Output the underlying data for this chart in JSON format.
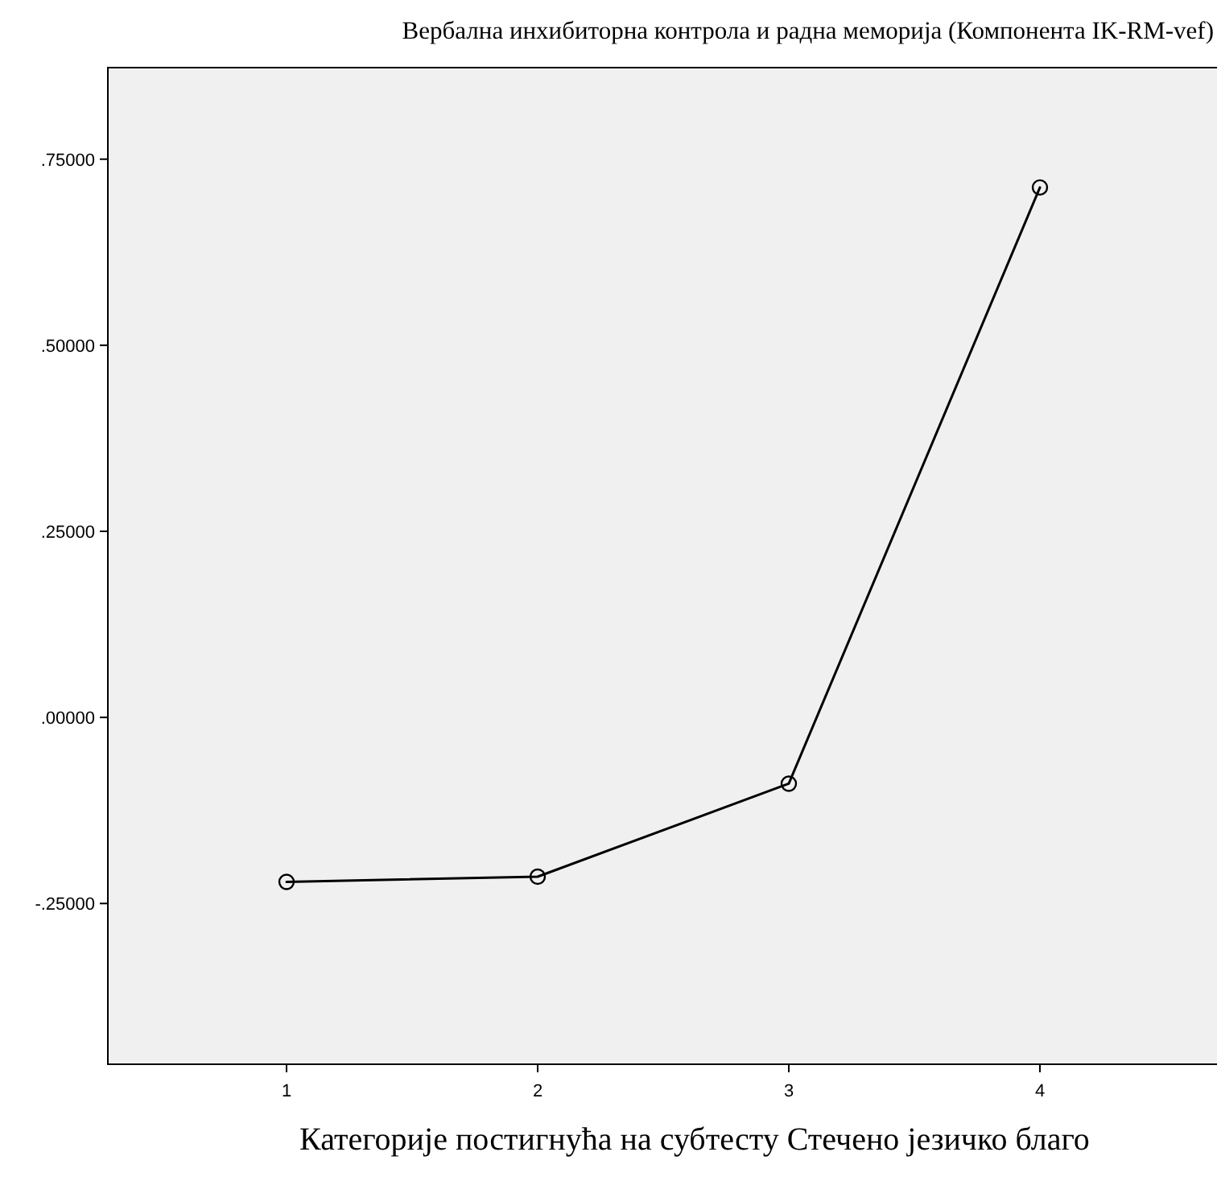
{
  "chart_data": {
    "type": "line",
    "title": "Вербална инхибиторна контрола и радна меморија (Компонента IK-RM-vef)",
    "xlabel": "Категорије постигнућа на субтесту Стечено језичко благо",
    "categories": [
      "1",
      "2",
      "3",
      "4"
    ],
    "series": [
      {
        "color": "#000000",
        "values": [
          -0.221,
          -0.214,
          -0.089,
          0.712
        ]
      }
    ],
    "ylim": [
      -0.466,
      0.873
    ],
    "yticks": [
      {
        "value": -0.25,
        "label": "-.25000"
      },
      {
        "value": 0,
        "label": ".00000"
      },
      {
        "value": 0.25,
        "label": ".25000"
      },
      {
        "value": 0.5,
        "label": ".50000"
      },
      {
        "value": 0.75,
        "label": ".75000"
      }
    ],
    "grid": false,
    "marker": "circle",
    "line_style": "solid"
  }
}
